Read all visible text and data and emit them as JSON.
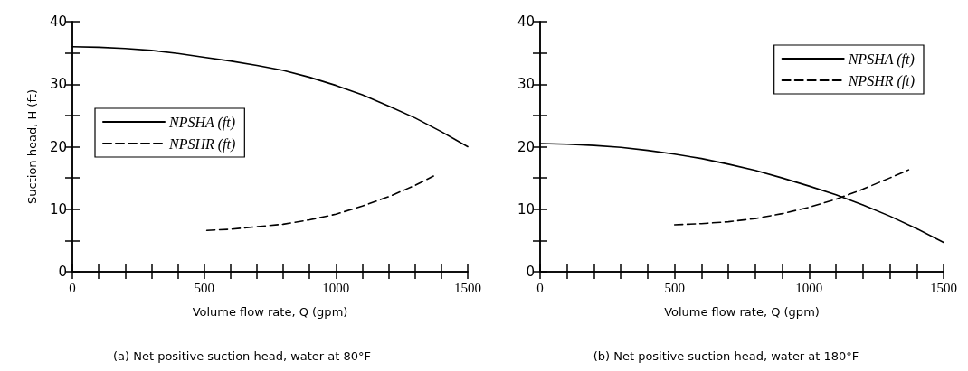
{
  "chart_data": [
    {
      "type": "line",
      "xlabel": "Volume flow rate, Q (gpm)",
      "ylabel": "Suction head, H (ft)",
      "annotations": [
        "(a) Net positive suction head, water at 80°F"
      ],
      "xlim": [
        0,
        1500
      ],
      "ylim": [
        0,
        40
      ],
      "xticks": [
        0,
        {
          "value": 100,
          "label": null
        },
        {
          "value": 200,
          "label": null
        },
        {
          "value": 300,
          "label": null
        },
        {
          "value": 400,
          "label": null
        },
        500,
        {
          "value": 600,
          "label": null
        },
        {
          "value": 700,
          "label": null
        },
        {
          "value": 800,
          "label": null
        },
        {
          "value": 900,
          "label": null
        },
        1000,
        {
          "value": 1100,
          "label": null
        },
        {
          "value": 1200,
          "label": null
        },
        {
          "value": 1300,
          "label": null
        },
        {
          "value": 1400,
          "label": null
        },
        1500
      ],
      "yticks": [
        0,
        {
          "value": 5,
          "label": null
        },
        10,
        {
          "value": 15,
          "label": null
        },
        20,
        {
          "value": 25,
          "label": null
        },
        30,
        {
          "value": 35,
          "label": null
        },
        40
      ],
      "grid": false,
      "legend": "left",
      "marker": "none",
      "series": [
        {
          "name": "NPSHA (ft)",
          "color": "#000000",
          "line_style": "solid",
          "x": [
            0,
            100,
            200,
            300,
            400,
            500,
            600,
            700,
            800,
            900,
            1000,
            1100,
            1200,
            1300,
            1400,
            1500
          ],
          "values": [
            36,
            35.9,
            35.7,
            35.4,
            34.9,
            34.3,
            33.7,
            33,
            32.2,
            31.1,
            29.8,
            28.3,
            26.5,
            24.6,
            22.4,
            20
          ]
        },
        {
          "name": "NPSHR (ft)",
          "color": "#000000",
          "line_style": "dashed",
          "x": [
            510,
            600,
            700,
            800,
            900,
            1000,
            1100,
            1200,
            1300,
            1370
          ],
          "values": [
            6.6,
            6.8,
            7.2,
            7.6,
            8.3,
            9.2,
            10.5,
            12,
            13.8,
            15.3
          ]
        }
      ]
    },
    {
      "type": "line",
      "xlabel": "Volume flow rate, Q (gpm)",
      "annotations": [
        "(b) Net positive suction head, water at 180°F"
      ],
      "xlim": [
        0,
        1500
      ],
      "ylim": [
        0,
        40
      ],
      "xticks": [
        0,
        {
          "value": 100,
          "label": null
        },
        {
          "value": 200,
          "label": null
        },
        {
          "value": 300,
          "label": null
        },
        {
          "value": 400,
          "label": null
        },
        500,
        {
          "value": 600,
          "label": null
        },
        {
          "value": 700,
          "label": null
        },
        {
          "value": 800,
          "label": null
        },
        {
          "value": 900,
          "label": null
        },
        1000,
        {
          "value": 1100,
          "label": null
        },
        {
          "value": 1200,
          "label": null
        },
        {
          "value": 1300,
          "label": null
        },
        {
          "value": 1400,
          "label": null
        },
        1500
      ],
      "yticks": [
        0,
        {
          "value": 5,
          "label": null
        },
        10,
        {
          "value": 15,
          "label": null
        },
        20,
        {
          "value": 25,
          "label": null
        },
        30,
        {
          "value": 35,
          "label": null
        },
        40
      ],
      "grid": false,
      "legend": "top right",
      "marker": "none",
      "series": [
        {
          "name": "NPSHA (ft)",
          "color": "#000000",
          "line_style": "solid",
          "x": [
            0,
            100,
            200,
            300,
            400,
            500,
            600,
            700,
            800,
            900,
            1000,
            1100,
            1200,
            1300,
            1400,
            1500
          ],
          "values": [
            20.5,
            20.4,
            20.2,
            19.9,
            19.4,
            18.8,
            18.1,
            17.2,
            16.2,
            15,
            13.7,
            12.3,
            10.7,
            8.9,
            6.9,
            4.7
          ]
        },
        {
          "name": "NPSHR (ft)",
          "color": "#000000",
          "line_style": "dashed",
          "x": [
            500,
            600,
            700,
            800,
            900,
            1000,
            1100,
            1200,
            1300,
            1370
          ],
          "values": [
            7.5,
            7.7,
            8,
            8.5,
            9.3,
            10.3,
            11.6,
            13.2,
            15,
            16.3
          ]
        }
      ]
    }
  ]
}
